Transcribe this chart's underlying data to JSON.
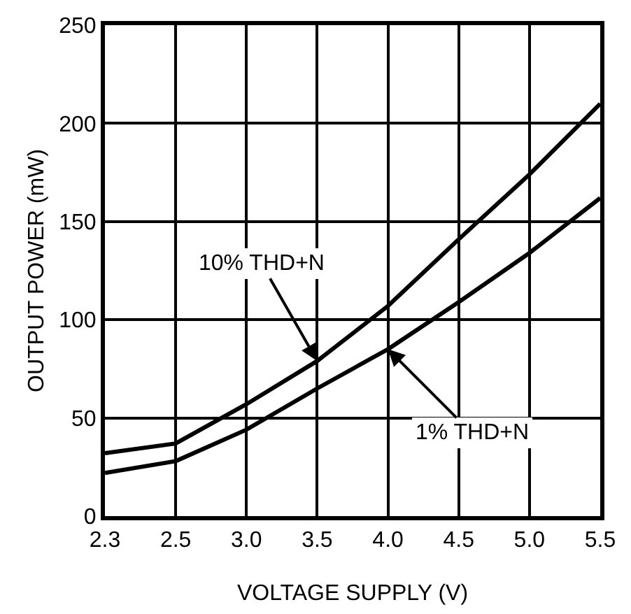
{
  "chart_data": {
    "type": "line",
    "xlabel": "VOLTAGE SUPPLY (V)",
    "ylabel": "OUTPUT POWER (mW)",
    "categories": [
      "2.3",
      "2.5",
      "3.0",
      "3.5",
      "4.0",
      "4.5",
      "5.0",
      "5.5"
    ],
    "series": [
      {
        "color": "#000000",
        "values": [
          32,
          37,
          57,
          79,
          107,
          141,
          174,
          210
        ]
      },
      {
        "color": "#000000",
        "values": [
          22,
          28,
          44,
          65,
          85,
          109,
          134,
          162
        ]
      }
    ],
    "ylim": [
      0,
      250
    ],
    "yticks": [
      0,
      50,
      100,
      150,
      200,
      250
    ],
    "grid": true,
    "marker": "none",
    "line_style": "solid",
    "annotations": [
      {
        "text": "10% THD+N",
        "x": "3.5",
        "y": 79
      },
      {
        "text": "1% THD+N",
        "x": "4.0",
        "y": 85
      }
    ]
  }
}
